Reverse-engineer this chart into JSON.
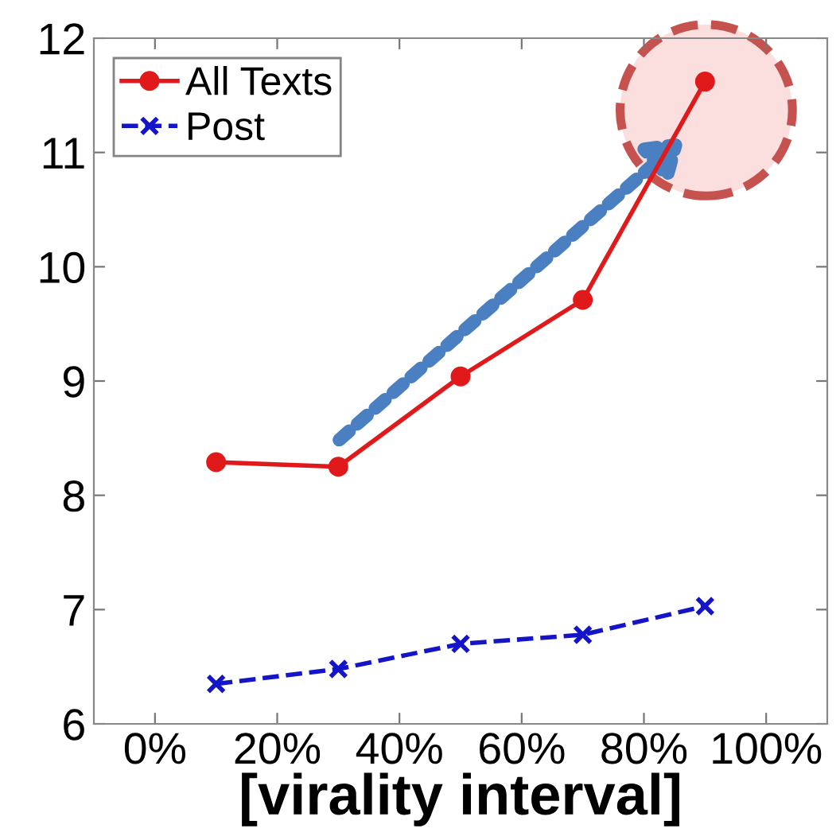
{
  "chart_data": {
    "type": "line",
    "xlabel": "[virality interval]",
    "x": [
      10,
      30,
      50,
      70,
      90
    ],
    "series": [
      {
        "name": "All Texts",
        "color": "#e0191b",
        "values": [
          8.29,
          8.25,
          9.04,
          9.71,
          11.62
        ],
        "marker": "circle",
        "line_style": "solid"
      },
      {
        "name": "Post",
        "color": "#1414c8",
        "values": [
          6.35,
          6.48,
          6.7,
          6.78,
          7.03
        ],
        "marker": "cross",
        "line_style": "dashed"
      }
    ],
    "xlim": [
      -10,
      110
    ],
    "xticks": [
      {
        "value": 0,
        "label": "0%"
      },
      {
        "value": 20,
        "label": "20%"
      },
      {
        "value": 40,
        "label": "40%"
      },
      {
        "value": 60,
        "label": "60%"
      },
      {
        "value": 80,
        "label": "80%"
      },
      {
        "value": 100,
        "label": "100%"
      }
    ],
    "ylim": [
      6,
      12
    ],
    "yticks": [
      6,
      7,
      8,
      9,
      10,
      11,
      12
    ],
    "grid": false,
    "legend": "top left"
  }
}
